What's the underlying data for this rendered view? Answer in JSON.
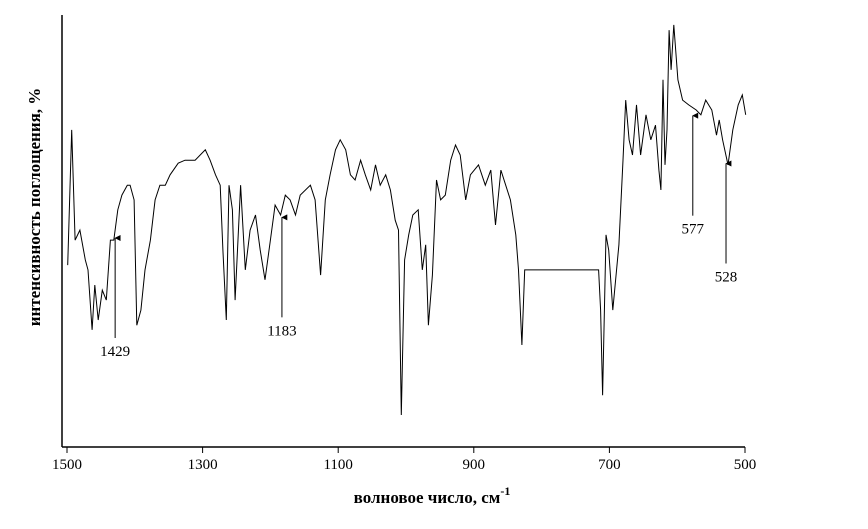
{
  "chart_data": {
    "type": "line",
    "xlabel": "волновое число, см",
    "xlabel_superscript": "-1",
    "ylabel": "интенсивность поглощения, %",
    "xlim": [
      1500,
      500
    ],
    "xticks": [
      1500,
      1300,
      1100,
      900,
      700,
      500
    ],
    "ylim": [
      0,
      100
    ],
    "color": "#000000",
    "annotations": [
      1429,
      1183,
      577,
      528
    ],
    "x": [
      1499,
      1493,
      1488,
      1481,
      1473,
      1469,
      1463,
      1459,
      1454,
      1448,
      1442,
      1436,
      1431,
      1425,
      1419,
      1411,
      1407,
      1401,
      1397,
      1391,
      1385,
      1377,
      1370,
      1363,
      1355,
      1348,
      1336,
      1326,
      1311,
      1296,
      1289,
      1281,
      1274,
      1270,
      1265,
      1261,
      1256,
      1252,
      1244,
      1237,
      1230,
      1222,
      1215,
      1208,
      1200,
      1193,
      1185,
      1178,
      1171,
      1163,
      1156,
      1141,
      1134,
      1126,
      1119,
      1112,
      1104,
      1097,
      1089,
      1082,
      1075,
      1067,
      1060,
      1052,
      1045,
      1038,
      1030,
      1023,
      1016,
      1011,
      1007,
      1002,
      996,
      990,
      982,
      976,
      971,
      967,
      961,
      955,
      949,
      942,
      934,
      927,
      920,
      912,
      905,
      893,
      883,
      875,
      868,
      860,
      853,
      846,
      838,
      834,
      829,
      825,
      716,
      713,
      710,
      705,
      701,
      695,
      686,
      680,
      676,
      671,
      666,
      660,
      654,
      646,
      639,
      632,
      627,
      624,
      621,
      618,
      615,
      612,
      609,
      605,
      599,
      592,
      583,
      572,
      565,
      558,
      549,
      542,
      538,
      533,
      525,
      518,
      510,
      504,
      499
    ],
    "values": [
      42.1,
      73.4,
      47.9,
      50.2,
      43.3,
      41.0,
      27.1,
      37.5,
      29.4,
      36.3,
      34.0,
      47.9,
      47.9,
      54.9,
      58.3,
      60.6,
      60.6,
      57.2,
      28.2,
      31.7,
      41.0,
      47.9,
      57.2,
      60.6,
      60.6,
      63.0,
      65.7,
      66.4,
      66.4,
      68.8,
      66.4,
      63.0,
      60.6,
      45.6,
      29.4,
      60.6,
      54.9,
      34.0,
      60.6,
      41.0,
      50.2,
      53.7,
      45.6,
      38.7,
      47.9,
      56.0,
      53.7,
      58.3,
      57.2,
      53.7,
      58.3,
      60.6,
      57.2,
      39.8,
      57.2,
      63.0,
      68.8,
      71.1,
      68.8,
      63.0,
      61.8,
      66.4,
      63.0,
      59.5,
      65.3,
      60.6,
      63.0,
      59.5,
      52.5,
      50.2,
      7.4,
      43.3,
      49.1,
      53.7,
      54.9,
      41.0,
      46.8,
      28.2,
      39.8,
      61.8,
      57.2,
      58.3,
      66.4,
      69.9,
      67.6,
      57.2,
      63.0,
      65.3,
      60.6,
      64.1,
      51.4,
      64.1,
      60.6,
      57.2,
      49.1,
      41.0,
      23.6,
      41.0,
      41.0,
      31.7,
      12.0,
      49.1,
      45.6,
      31.7,
      46.8,
      66.4,
      80.3,
      71.1,
      67.6,
      79.2,
      67.6,
      76.9,
      71.1,
      74.5,
      64.1,
      59.5,
      85.0,
      65.3,
      73.4,
      96.5,
      87.3,
      97.7,
      85.0,
      80.3,
      79.2,
      78.0,
      76.9,
      80.3,
      78.0,
      72.2,
      75.7,
      71.1,
      65.3,
      73.4,
      79.2,
      81.5,
      76.9
    ]
  }
}
